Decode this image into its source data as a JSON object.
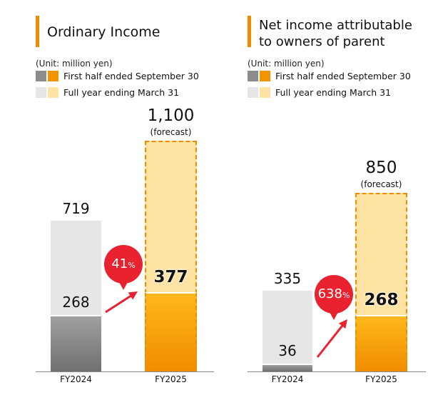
{
  "legend": {
    "unit": "(Unit: million yen)",
    "first_half": "First half ended September 30",
    "full_year": "Full year ending March 31"
  },
  "colors": {
    "gray_dark": "#8c8c8c",
    "gray_light": "#e6e6e6",
    "orange_dark": "#f29400",
    "orange_light": "#ffe3a3",
    "accent": "#f08c00",
    "bubble": "#e8222e"
  },
  "chart_data": [
    {
      "type": "bar",
      "title": "Ordinary Income",
      "categories": [
        "FY2024",
        "FY2025"
      ],
      "series": [
        {
          "name": "First half ended September 30",
          "values": [
            268,
            377
          ]
        },
        {
          "name": "Full year ending March 31",
          "values": [
            719,
            1100
          ]
        }
      ],
      "labels": {
        "first_half": [
          "268",
          "377"
        ],
        "full_year": [
          "719",
          "1,100"
        ]
      },
      "forecast_note": "(forecast)",
      "growth": "41",
      "growth_unit": "%"
    },
    {
      "type": "bar",
      "title": "Net income attributable to owners of parent",
      "title_lines": [
        "Net income attributable",
        "to owners of parent"
      ],
      "categories": [
        "FY2024",
        "FY2025"
      ],
      "series": [
        {
          "name": "First half ended September 30",
          "values": [
            36,
            268
          ]
        },
        {
          "name": "Full year ending March 31",
          "values": [
            335,
            850
          ]
        }
      ],
      "labels": {
        "first_half": [
          "36",
          "268"
        ],
        "full_year": [
          "335",
          "850"
        ]
      },
      "forecast_note": "(forecast)",
      "growth": "638",
      "growth_unit": "%"
    }
  ]
}
